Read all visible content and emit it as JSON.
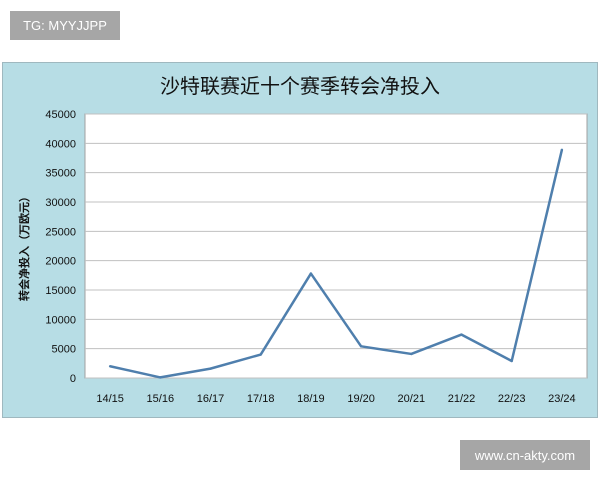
{
  "watermarks": {
    "top_left": "TG: MYYJJPP",
    "bottom_right": "www.cn-akty.com"
  },
  "chart_data": {
    "type": "line",
    "title": "沙特联赛近十个赛季转会净投入",
    "xlabel": "",
    "ylabel": "转会净投入（万欧元）",
    "categories": [
      "14/15",
      "15/16",
      "16/17",
      "17/18",
      "18/19",
      "19/20",
      "20/21",
      "21/22",
      "22/23",
      "23/24"
    ],
    "values": [
      2000,
      100,
      1600,
      4000,
      17800,
      5400,
      4100,
      7400,
      2900,
      38900
    ],
    "ylim": [
      0,
      45000
    ],
    "yticks": [
      "0",
      "5000",
      "10000",
      "15000",
      "20000",
      "25000",
      "30000",
      "35000",
      "40000",
      "45000"
    ],
    "grid": true,
    "legend": "none",
    "colors": {
      "line": "#4f7fad",
      "background": "#b7dde5",
      "plot": "#ffffff",
      "grid": "#c0c0c0"
    }
  }
}
